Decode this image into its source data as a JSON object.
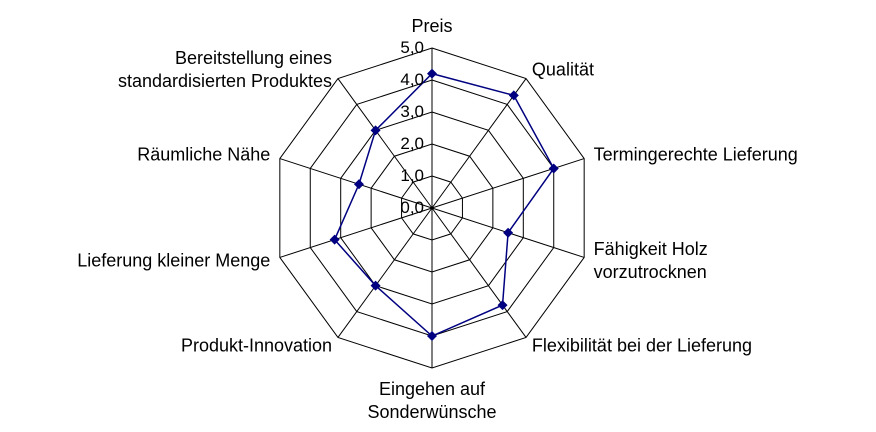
{
  "chart_data": {
    "type": "radar",
    "categories": [
      "Preis",
      "Qualität",
      "Termingerechte Lieferung",
      "Fähigkeit Holz\nvorzutrocknen",
      "Flexibilität bei der Lieferung",
      "Eingehen auf\nSonderwünsche",
      "Produkt-Innovation",
      "Lieferung kleiner Menge",
      "Räumliche Nähe",
      "Bereitstellung eines\nstandardisierten Produktes"
    ],
    "series": [
      {
        "color": "#000080",
        "values": [
          4.2,
          4.35,
          4.0,
          2.5,
          3.75,
          4.0,
          3.0,
          3.2,
          2.4,
          3.0
        ]
      }
    ],
    "ylim": [
      0,
      5
    ],
    "yticks": [
      {
        "value": 0,
        "label": "0,0"
      },
      {
        "value": 1,
        "label": "1,0"
      },
      {
        "value": 2,
        "label": "2,0"
      },
      {
        "value": 3,
        "label": "3,0"
      },
      {
        "value": 4,
        "label": "4,0"
      },
      {
        "value": 5,
        "label": "5,0"
      }
    ],
    "grid": true
  }
}
